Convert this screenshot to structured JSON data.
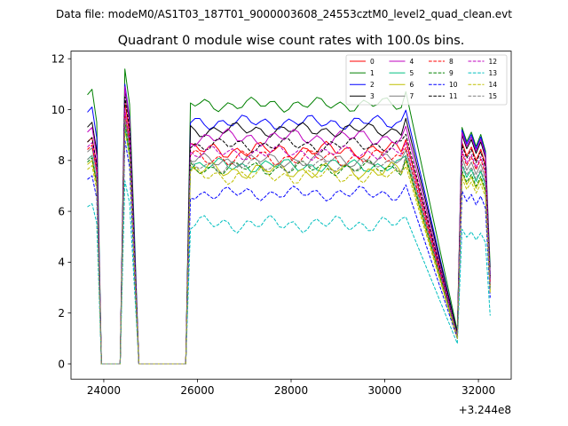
{
  "suptitle": "Data file: modeM0/AS1T03_187T01_9000003608_24553cztM0_level2_quad_clean.evt",
  "chart_data": {
    "type": "line",
    "title": "Quadrant 0 module wise count rates with 100.0s bins.",
    "xlabel": "",
    "ylabel": "",
    "x_offset_label": "+3.244e8",
    "xlim": [
      23300,
      32700
    ],
    "ylim": [
      -0.6,
      12.3
    ],
    "x_ticks": [
      24000,
      26000,
      28000,
      30000,
      32000
    ],
    "x_tick_labels": [
      "24000",
      "26000",
      "28000",
      "30000",
      "32000"
    ],
    "y_ticks": [
      0,
      2,
      4,
      6,
      8,
      10,
      12
    ],
    "y_tick_labels": [
      "0",
      "2",
      "4",
      "6",
      "8",
      "10",
      "12"
    ],
    "legend_position": "top-right",
    "segments": [
      {
        "start": 23650,
        "n": 12
      },
      {
        "start": 25750,
        "n": 48
      },
      {
        "start": 31550,
        "n": 8
      }
    ],
    "series": [
      {
        "name": "0",
        "color": "#ff0000",
        "dash": false,
        "level": 8.4,
        "amp": 0.35,
        "a1": 8.9,
        "a2": 10.3,
        "b1": 8.7,
        "end": 3.2
      },
      {
        "name": "1",
        "color": "#008000",
        "dash": false,
        "level": 10.2,
        "amp": 0.3,
        "a1": 10.8,
        "a2": 11.6,
        "b1": 9.3,
        "end": 3.8
      },
      {
        "name": "2",
        "color": "#0000ff",
        "dash": false,
        "level": 9.5,
        "amp": 0.3,
        "a1": 10.1,
        "a2": 11.0,
        "b1": 9.2,
        "end": 3.5
      },
      {
        "name": "3",
        "color": "#000000",
        "dash": false,
        "level": 9.2,
        "amp": 0.3,
        "a1": 9.5,
        "a2": 10.8,
        "b1": 9.0,
        "end": 3.4
      },
      {
        "name": "4",
        "color": "#bf00bf",
        "dash": false,
        "level": 8.9,
        "amp": 0.35,
        "a1": 9.3,
        "a2": 10.9,
        "b1": 9.1,
        "end": 3.3
      },
      {
        "name": "5",
        "color": "#00bf80",
        "dash": false,
        "level": 7.8,
        "amp": 0.3,
        "a1": 8.2,
        "a2": 9.3,
        "b1": 7.8,
        "end": 3.0
      },
      {
        "name": "6",
        "color": "#bfbf00",
        "dash": false,
        "level": 7.6,
        "amp": 0.35,
        "a1": 8.0,
        "a2": 9.6,
        "b1": 7.5,
        "end": 2.9
      },
      {
        "name": "7",
        "color": "#7f7f7f",
        "dash": false,
        "level": 8.0,
        "amp": 0.3,
        "a1": 8.5,
        "a2": 9.8,
        "b1": 8.1,
        "end": 3.1
      },
      {
        "name": "8",
        "color": "#ff0000",
        "dash": true,
        "level": 8.1,
        "amp": 0.35,
        "a1": 8.6,
        "a2": 9.9,
        "b1": 8.3,
        "end": 3.1
      },
      {
        "name": "9",
        "color": "#008000",
        "dash": true,
        "level": 7.7,
        "amp": 0.3,
        "a1": 8.1,
        "a2": 9.5,
        "b1": 7.6,
        "end": 3.0
      },
      {
        "name": "10",
        "color": "#0000ff",
        "dash": true,
        "level": 6.7,
        "amp": 0.3,
        "a1": 7.4,
        "a2": 8.8,
        "b1": 6.8,
        "end": 2.6
      },
      {
        "name": "11",
        "color": "#000000",
        "dash": true,
        "level": 8.6,
        "amp": 0.3,
        "a1": 8.9,
        "a2": 10.5,
        "b1": 8.6,
        "end": 3.3
      },
      {
        "name": "12",
        "color": "#bf00bf",
        "dash": true,
        "level": 8.3,
        "amp": 0.3,
        "a1": 8.7,
        "a2": 10.0,
        "b1": 8.4,
        "end": 3.2
      },
      {
        "name": "13",
        "color": "#00bfbf",
        "dash": true,
        "level": 5.5,
        "amp": 0.35,
        "a1": 6.3,
        "a2": 7.2,
        "b1": 5.3,
        "end": 1.9
      },
      {
        "name": "14",
        "color": "#bfbf00",
        "dash": true,
        "level": 7.4,
        "amp": 0.35,
        "a1": 7.8,
        "a2": 9.2,
        "b1": 7.3,
        "end": 2.8
      },
      {
        "name": "15",
        "color": "#7f7f7f",
        "dash": true,
        "level": 7.8,
        "amp": 0.3,
        "a1": 8.2,
        "a2": 9.6,
        "b1": 7.9,
        "end": 3.0
      }
    ]
  }
}
